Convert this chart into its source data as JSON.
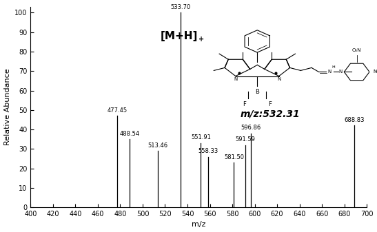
{
  "peaks": [
    {
      "mz": 477.45,
      "abundance": 47.0,
      "label": "477.45"
    },
    {
      "mz": 488.54,
      "abundance": 35.0,
      "label": "488.54"
    },
    {
      "mz": 513.46,
      "abundance": 29.0,
      "label": "513.46"
    },
    {
      "mz": 533.7,
      "abundance": 100.0,
      "label": "533.70"
    },
    {
      "mz": 551.91,
      "abundance": 33.0,
      "label": "551.91"
    },
    {
      "mz": 558.33,
      "abundance": 26.0,
      "label": "558.33"
    },
    {
      "mz": 581.5,
      "abundance": 23.0,
      "label": "581.50"
    },
    {
      "mz": 591.59,
      "abundance": 32.0,
      "label": "591.59"
    },
    {
      "mz": 596.86,
      "abundance": 38.0,
      "label": "596.86"
    },
    {
      "mz": 688.83,
      "abundance": 42.0,
      "label": "688.83"
    }
  ],
  "xlim": [
    400,
    700
  ],
  "ylim": [
    0,
    103
  ],
  "xticks": [
    400,
    420,
    440,
    460,
    480,
    500,
    520,
    540,
    560,
    580,
    600,
    620,
    640,
    660,
    680,
    700
  ],
  "yticks": [
    0,
    10,
    20,
    30,
    40,
    50,
    60,
    70,
    80,
    90,
    100
  ],
  "xlabel": "m/z",
  "ylabel": "Relative Abundance",
  "mh_label": "[M+H]",
  "mz_label": "m/z:532.31",
  "bar_color": "black",
  "background_color": "white",
  "label_fontsize": 6.0,
  "axis_label_fontsize": 8,
  "tick_fontsize": 7,
  "mh_fontsize": 11,
  "mz_fontsize": 10
}
